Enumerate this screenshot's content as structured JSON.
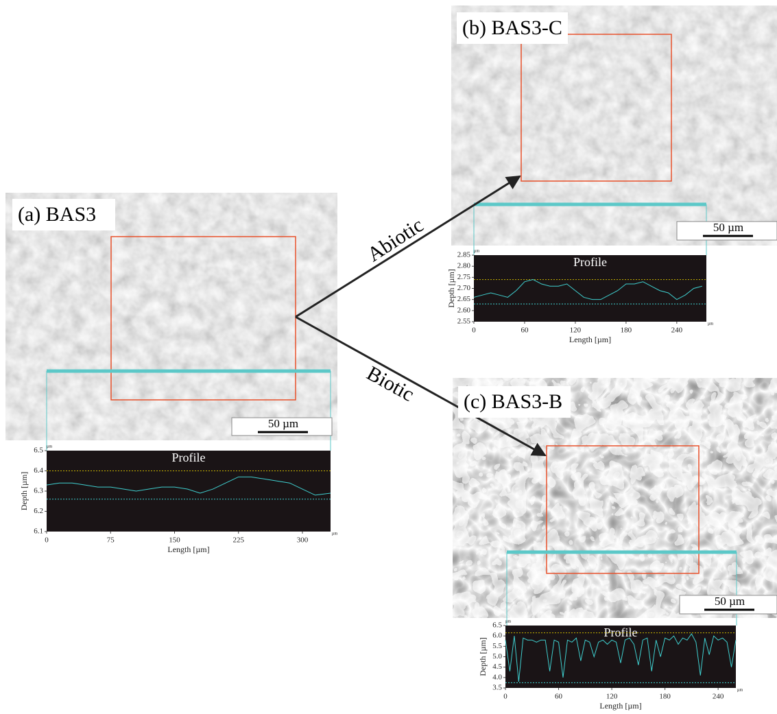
{
  "arrow_labels": [
    "Abiotic",
    "Biotic"
  ],
  "chart_data": [
    {
      "type": "line",
      "panel_label": "(a) BAS3",
      "scale_bar": "50 µm",
      "title": "Profile",
      "unit_label": "µm",
      "xlabel": "Length [µm]",
      "ylabel": "Depth [µm]",
      "xlim": [
        0,
        333
      ],
      "ylim": [
        6.1,
        6.5
      ],
      "xticks": [
        0,
        75,
        150,
        225,
        300
      ],
      "yticks": [
        6.1,
        6.2,
        6.3,
        6.4,
        6.5
      ],
      "reference_lines": [
        {
          "value": 6.4,
          "color": "#c8b400"
        },
        {
          "value": 6.26,
          "color": "#3fd0d0"
        }
      ],
      "x": [
        0,
        15,
        30,
        45,
        60,
        75,
        90,
        105,
        120,
        135,
        150,
        165,
        180,
        195,
        210,
        225,
        240,
        255,
        270,
        285,
        300,
        315,
        333
      ],
      "series": [
        {
          "color": "#3fd0d0",
          "values": [
            6.33,
            6.34,
            6.34,
            6.33,
            6.32,
            6.32,
            6.31,
            6.3,
            6.31,
            6.32,
            6.32,
            6.31,
            6.29,
            6.31,
            6.34,
            6.37,
            6.37,
            6.36,
            6.35,
            6.34,
            6.31,
            6.28,
            6.29
          ]
        }
      ]
    },
    {
      "type": "line",
      "panel_label": "(b) BAS3-C",
      "scale_bar": "50 µm",
      "title": "Profile",
      "unit_label": "µm",
      "xlabel": "Length [µm]",
      "ylabel": "Depth [µm]",
      "xlim": [
        0,
        275
      ],
      "ylim": [
        2.55,
        2.85
      ],
      "xticks": [
        0,
        60,
        120,
        180,
        240
      ],
      "yticks": [
        2.55,
        {
          "value": 2.6,
          "label": "2.60"
        },
        2.65,
        {
          "value": 2.7,
          "label": "2.70"
        },
        2.75,
        {
          "value": 2.8,
          "label": "2.80"
        },
        2.85
      ],
      "reference_lines": [
        {
          "value": 2.74,
          "color": "#c8b400"
        },
        {
          "value": 2.63,
          "color": "#3fd0d0"
        }
      ],
      "x": [
        0,
        10,
        20,
        30,
        40,
        50,
        60,
        70,
        80,
        90,
        100,
        110,
        120,
        130,
        140,
        150,
        160,
        170,
        180,
        190,
        200,
        210,
        220,
        230,
        240,
        250,
        260,
        270
      ],
      "series": [
        {
          "color": "#3fd0d0",
          "values": [
            2.66,
            2.67,
            2.68,
            2.67,
            2.66,
            2.69,
            2.73,
            2.74,
            2.72,
            2.71,
            2.71,
            2.72,
            2.69,
            2.66,
            2.65,
            2.65,
            2.67,
            2.69,
            2.72,
            2.72,
            2.73,
            2.71,
            2.69,
            2.68,
            2.65,
            2.67,
            2.7,
            2.71
          ]
        }
      ]
    },
    {
      "type": "line",
      "panel_label": "(c) BAS3-B",
      "scale_bar": "50 µm",
      "title": "Profile",
      "unit_label": "µm",
      "xlabel": "Length [µm]",
      "ylabel": "Depth [µm]",
      "xlim": [
        0,
        260
      ],
      "ylim": [
        3.5,
        6.5
      ],
      "xticks": [
        0,
        60,
        120,
        180,
        240
      ],
      "yticks": [
        3.5,
        {
          "value": 4,
          "label": "4.0"
        },
        4.5,
        {
          "value": 5,
          "label": "5.0"
        },
        5.5,
        {
          "value": 6,
          "label": "6.0"
        },
        6.5
      ],
      "reference_lines": [
        {
          "value": 6.15,
          "color": "#c8b400"
        },
        {
          "value": 3.75,
          "color": "#3fd0d0"
        }
      ],
      "x": [
        0,
        5,
        10,
        15,
        20,
        25,
        30,
        35,
        40,
        45,
        50,
        55,
        60,
        65,
        70,
        75,
        80,
        85,
        90,
        95,
        100,
        105,
        110,
        115,
        120,
        125,
        130,
        135,
        140,
        145,
        150,
        155,
        160,
        165,
        170,
        175,
        180,
        185,
        190,
        195,
        200,
        205,
        210,
        215,
        220,
        225,
        230,
        235,
        240,
        245,
        250,
        255,
        260
      ],
      "series": [
        {
          "color": "#3fd0d0",
          "values": [
            5.8,
            4.3,
            6.0,
            3.8,
            5.9,
            5.8,
            5.8,
            5.7,
            5.8,
            5.8,
            4.3,
            5.8,
            5.7,
            4.0,
            5.8,
            5.7,
            5.9,
            4.8,
            5.8,
            5.7,
            5.0,
            5.7,
            5.8,
            5.6,
            5.8,
            5.7,
            4.7,
            5.8,
            5.9,
            5.6,
            4.6,
            5.8,
            5.9,
            4.3,
            5.8,
            5.0,
            5.9,
            5.8,
            6.0,
            5.6,
            5.9,
            5.8,
            6.1,
            5.7,
            4.1,
            5.9,
            5.1,
            6.0,
            5.8,
            5.9,
            5.7,
            4.5,
            5.8
          ]
        }
      ]
    }
  ]
}
